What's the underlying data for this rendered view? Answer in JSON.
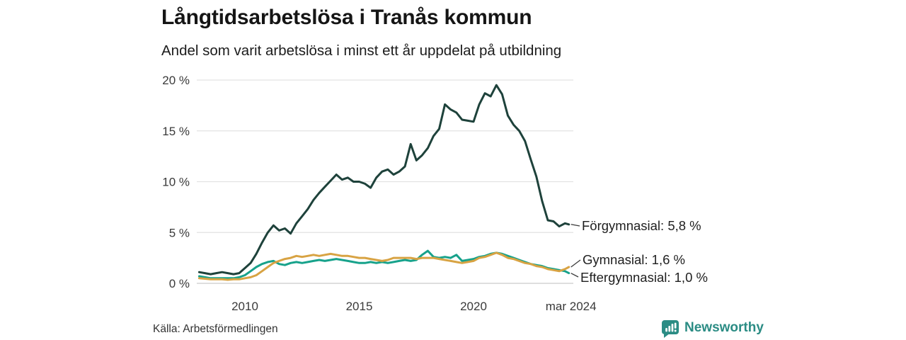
{
  "chart_data": {
    "type": "line",
    "title": "Långtidsarbetslösa i Tranås kommun",
    "subtitle": "Andel som varit arbetslösa i minst ett år uppdelat på utbildning",
    "grid": true,
    "legend_position": "end-of-line labels, right of plot",
    "xlim": [
      2008,
      2024.25
    ],
    "ylim": [
      0,
      20
    ],
    "y_ticks": [
      {
        "label": "0 %",
        "value": 0
      },
      {
        "label": "5 %",
        "value": 5
      },
      {
        "label": "10 %",
        "value": 10
      },
      {
        "label": "15 %",
        "value": 15
      },
      {
        "label": "20 %",
        "value": 20
      }
    ],
    "x_ticks": [
      {
        "label": "2010",
        "year": 2010
      },
      {
        "label": "2015",
        "year": 2015
      },
      {
        "label": "2020",
        "year": 2020
      },
      {
        "label": "mar 2024",
        "year": 2024.17
      }
    ],
    "x": [
      2008,
      2008.25,
      2008.5,
      2008.75,
      2009,
      2009.25,
      2009.5,
      2009.75,
      2010,
      2010.25,
      2010.5,
      2010.75,
      2011,
      2011.25,
      2011.5,
      2011.75,
      2012,
      2012.25,
      2012.5,
      2012.75,
      2013,
      2013.25,
      2013.5,
      2013.75,
      2014,
      2014.25,
      2014.5,
      2014.75,
      2015,
      2015.25,
      2015.5,
      2015.75,
      2016,
      2016.25,
      2016.5,
      2016.75,
      2017,
      2017.25,
      2017.5,
      2017.75,
      2018,
      2018.25,
      2018.5,
      2018.75,
      2019,
      2019.25,
      2019.5,
      2019.75,
      2020,
      2020.25,
      2020.5,
      2020.75,
      2021,
      2021.25,
      2021.5,
      2021.75,
      2022,
      2022.25,
      2022.5,
      2022.75,
      2023,
      2023.25,
      2023.5,
      2023.75,
      2024,
      2024.17
    ],
    "series": [
      {
        "id": "forgymnasial",
        "name": "Förgymnasial",
        "end_label": "Förgymnasial: 5,8 %",
        "end_value": 5.8,
        "color": "#1e423b",
        "values": [
          1.1,
          1.0,
          0.9,
          1.0,
          1.1,
          1.0,
          0.9,
          1.0,
          1.5,
          2.0,
          2.9,
          4.0,
          5.0,
          5.7,
          5.2,
          5.4,
          4.9,
          5.9,
          6.6,
          7.3,
          8.2,
          8.9,
          9.5,
          10.1,
          10.7,
          10.2,
          10.4,
          10.0,
          10.0,
          9.8,
          9.4,
          10.4,
          11.0,
          11.2,
          10.7,
          11.0,
          11.5,
          13.7,
          12.1,
          12.6,
          13.3,
          14.5,
          15.2,
          17.6,
          17.1,
          16.8,
          16.1,
          16.0,
          15.9,
          17.6,
          18.7,
          18.4,
          19.5,
          18.6,
          16.5,
          15.6,
          15.0,
          14.0,
          12.2,
          10.5,
          8.1,
          6.2,
          6.1,
          5.6,
          5.9,
          5.8
        ]
      },
      {
        "id": "gymnasial",
        "name": "Gymnasial",
        "end_label": "Gymnasial: 1,6 %",
        "end_value": 1.6,
        "color": "#d8a343",
        "values": [
          0.5,
          0.45,
          0.4,
          0.4,
          0.4,
          0.35,
          0.4,
          0.4,
          0.5,
          0.6,
          0.8,
          1.2,
          1.6,
          2.0,
          2.2,
          2.4,
          2.5,
          2.7,
          2.6,
          2.7,
          2.8,
          2.7,
          2.8,
          2.9,
          2.8,
          2.7,
          2.7,
          2.6,
          2.5,
          2.5,
          2.4,
          2.3,
          2.2,
          2.3,
          2.5,
          2.5,
          2.5,
          2.5,
          2.4,
          2.5,
          2.5,
          2.5,
          2.4,
          2.3,
          2.2,
          2.1,
          2.0,
          2.1,
          2.2,
          2.5,
          2.6,
          2.8,
          3.0,
          2.8,
          2.5,
          2.4,
          2.2,
          2.0,
          1.9,
          1.7,
          1.6,
          1.4,
          1.3,
          1.2,
          1.4,
          1.6
        ]
      },
      {
        "id": "eftergymnasial",
        "name": "Eftergymnasial",
        "end_label": "Eftergymnasial: 1,0 %",
        "end_value": 1.0,
        "color": "#17a28b",
        "values": [
          0.7,
          0.6,
          0.5,
          0.5,
          0.5,
          0.5,
          0.5,
          0.6,
          0.8,
          1.2,
          1.6,
          1.9,
          2.1,
          2.2,
          1.9,
          1.8,
          2.0,
          2.1,
          2.0,
          2.1,
          2.2,
          2.3,
          2.2,
          2.3,
          2.4,
          2.3,
          2.2,
          2.1,
          2.0,
          2.0,
          2.1,
          2.0,
          2.1,
          2.0,
          2.1,
          2.2,
          2.3,
          2.2,
          2.3,
          2.8,
          3.2,
          2.6,
          2.5,
          2.6,
          2.5,
          2.8,
          2.2,
          2.3,
          2.4,
          2.6,
          2.7,
          2.9,
          3.0,
          2.9,
          2.7,
          2.5,
          2.3,
          2.1,
          1.9,
          1.8,
          1.7,
          1.5,
          1.4,
          1.3,
          1.2,
          1.0
        ]
      }
    ],
    "colors": {
      "gridline": "#e3e3e3",
      "baseline": "#c9c9c9",
      "tick_text": "#3a3a3a",
      "label_text": "#1f1f1f"
    }
  },
  "footer": {
    "source": "Källa: Arbetsförmedlingen",
    "brand": "Newsworthy",
    "brand_color": "#2b8c84",
    "brand_icon": "bar-chart-speech-bubble"
  }
}
